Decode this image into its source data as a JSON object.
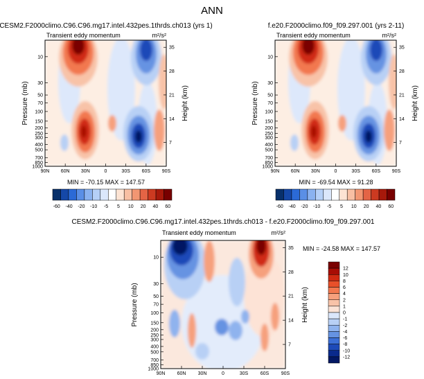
{
  "page": {
    "title": "ANN"
  },
  "chart_data": [
    {
      "type": "heatmap",
      "title": "CESM2.F2000climo.C96.C96.mg17.intel.432pes.1thrds.ch013 (yrs 1)",
      "subtitle": "Transient eddy momentum",
      "units": "m²/s²",
      "ylabel": "Pressure (mb)",
      "y2label": "Height (km)",
      "x_ticks": [
        "90N",
        "60N",
        "30N",
        "0",
        "30S",
        "60S",
        "90S"
      ],
      "y_ticks": [
        "10",
        "30",
        "50",
        "70",
        "100",
        "150",
        "200",
        "250",
        "300",
        "400",
        "500",
        "700",
        "850",
        "1000"
      ],
      "y2_ticks": [
        "35",
        "28",
        "21",
        "14",
        "7"
      ],
      "stats_text": "MIN = -70.15   MAX = 147.57",
      "min": -70.15,
      "max": 147.57,
      "colorbar_labels": [
        "-60",
        "-40",
        "-20",
        "-10",
        "-5",
        "5",
        "10",
        "20",
        "40",
        "60"
      ]
    },
    {
      "type": "heatmap",
      "title": "f.e20.F2000climo.f09_f09.297.001 (yrs 2-11)",
      "subtitle": "Transient eddy momentum",
      "units": "m²/s²",
      "ylabel": "Pressure (mb)",
      "y2label": "Height (km)",
      "x_ticks": [
        "90N",
        "60N",
        "30N",
        "0",
        "30S",
        "60S",
        "90S"
      ],
      "y_ticks": [
        "10",
        "30",
        "50",
        "70",
        "100",
        "150",
        "200",
        "250",
        "300",
        "400",
        "500",
        "700",
        "850",
        "1000"
      ],
      "y2_ticks": [
        "35",
        "28",
        "21",
        "14",
        "7"
      ],
      "stats_text": "MIN = -69.54   MAX =  91.28",
      "min": -69.54,
      "max": 91.28,
      "colorbar_labels": [
        "-60",
        "-40",
        "-20",
        "-10",
        "-5",
        "5",
        "10",
        "20",
        "40",
        "60"
      ]
    },
    {
      "type": "heatmap",
      "title": "CESM2.F2000climo.C96.C96.mg17.intel.432pes.1thrds.ch013 - f.e20.F2000climo.f09_f09.297.001",
      "subtitle": "Transient eddy momentum",
      "units": "m²/s²",
      "ylabel": "Pressure (mb)",
      "y2label": "Height (km)",
      "x_ticks": [
        "90N",
        "60N",
        "30N",
        "0",
        "30S",
        "60S",
        "90S"
      ],
      "y_ticks": [
        "10",
        "30",
        "50",
        "70",
        "100",
        "150",
        "200",
        "250",
        "300",
        "400",
        "500",
        "700",
        "850",
        "1000"
      ],
      "y2_ticks": [
        "35",
        "28",
        "21",
        "14",
        "7"
      ],
      "stats_text": "MIN = -24.58   MAX = 147.57",
      "min": -24.58,
      "max": 147.57,
      "colorbar_labels": [
        "12",
        "10",
        "8",
        "6",
        "4",
        "2",
        "1",
        "0",
        "-1",
        "-2",
        "-4",
        "-6",
        "-8",
        "-10",
        "-12"
      ]
    }
  ],
  "colors": {
    "cb1": [
      "#08306b",
      "#1548a8",
      "#2b6ad6",
      "#5a8fe6",
      "#8ab2f0",
      "#b5d0f7",
      "#dbe7fb",
      "#ffffff",
      "#fde3d3",
      "#f8bfa3",
      "#f29672",
      "#e46445",
      "#cc3a21",
      "#a7190b",
      "#780000"
    ],
    "cb2": [
      "#7a0000",
      "#a80d05",
      "#d02a12",
      "#e8502a",
      "#f2784f",
      "#f6a07d",
      "#f8c3a8",
      "#fbe3d6",
      "#dbe7fb",
      "#b8d0f5",
      "#8fb3ee",
      "#6693e2",
      "#3c6fd6",
      "#1d4ab8",
      "#0a2a8c",
      "#031863"
    ]
  }
}
